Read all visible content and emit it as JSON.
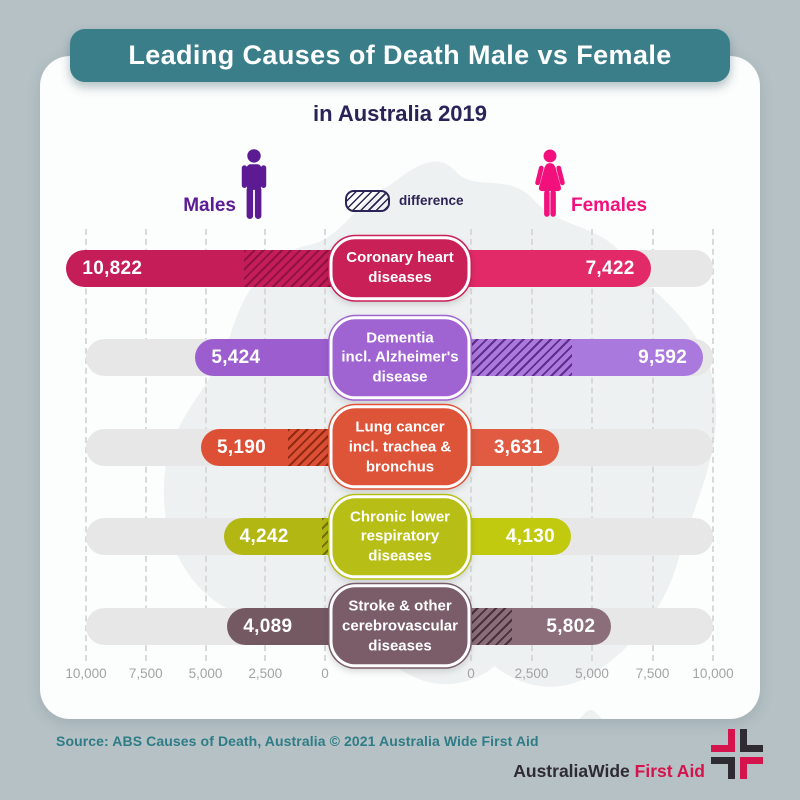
{
  "title": "Leading Causes of Death Male vs Female",
  "subtitle": "in Australia 2019",
  "legend": {
    "males": "Males",
    "females": "Females",
    "difference": "difference"
  },
  "source": "Source: ABS Causes of Death, Australia © 2021 Australia Wide First Aid",
  "logo": {
    "brand_dark": "AustraliaWide",
    "brand_red": "First Aid"
  },
  "colors": {
    "background": "#b5c1c5",
    "card": "#fcfdfd",
    "map": "#eef1f1",
    "title_bg": "#397e89",
    "title_text": "#ffffff",
    "subtitle_text": "#2b2258",
    "male": "#5c1b93",
    "female": "#f2117c",
    "legend_outline": "#2b2455",
    "track": "#e7e7e7",
    "gridline": "#d9d9d9",
    "axis_text": "#a3a3a3",
    "source_text": "#2e7c86",
    "logo_dark": "#2f2b33",
    "logo_red": "#d5134c"
  },
  "chart_data": {
    "type": "bar",
    "variant": "diverging-butterfly",
    "title": "Leading Causes of Death Male vs Female in Australia 2019",
    "legend_position": "top-center",
    "grid": true,
    "axis": {
      "max": 10000,
      "tick_values": [
        0,
        2500,
        5000,
        7500,
        10000
      ],
      "tick_labels": [
        "0",
        "2,500",
        "5,000",
        "7,500",
        "10,000"
      ]
    },
    "series_names": [
      "Males",
      "Females"
    ],
    "rows": [
      {
        "label": "Coronary heart\ndiseases",
        "male": 10822,
        "male_label": "10,822",
        "female": 7422,
        "female_label": "7,422",
        "male_color": "#c41d58",
        "female_color": "#e22a68",
        "box_color": "#ca2058",
        "hatch_color": "#8f1242"
      },
      {
        "label": "Dementia\nincl. Alzheimer's\ndisease",
        "male": 5424,
        "male_label": "5,424",
        "female": 9592,
        "female_label": "9,592",
        "male_color": "#9c5ecf",
        "female_color": "#aa79de",
        "box_color": "#9f63d2",
        "hatch_color": "#5e2d8a"
      },
      {
        "label": "Lung cancer\nincl. trachea &\nbronchus",
        "male": 5190,
        "male_label": "5,190",
        "female": 3631,
        "female_label": "3,631",
        "male_color": "#dd5036",
        "female_color": "#e05b41",
        "box_color": "#dd5439",
        "hatch_color": "#8f2a12"
      },
      {
        "label": "Chronic lower\nrespiratory\ndiseases",
        "male": 4242,
        "male_label": "4,242",
        "female": 4130,
        "female_label": "4,130",
        "male_color": "#b2b713",
        "female_color": "#c2ca10",
        "box_color": "#b7bf16",
        "hatch_color": "#6f7410"
      },
      {
        "label": "Stroke & other\ncerebrovascular\ndiseases",
        "male": 4089,
        "male_label": "4,089",
        "female": 5802,
        "female_label": "5,802",
        "male_color": "#745963",
        "female_color": "#8b6e79",
        "box_color": "#7a5d68",
        "hatch_color": "#463039"
      }
    ]
  }
}
